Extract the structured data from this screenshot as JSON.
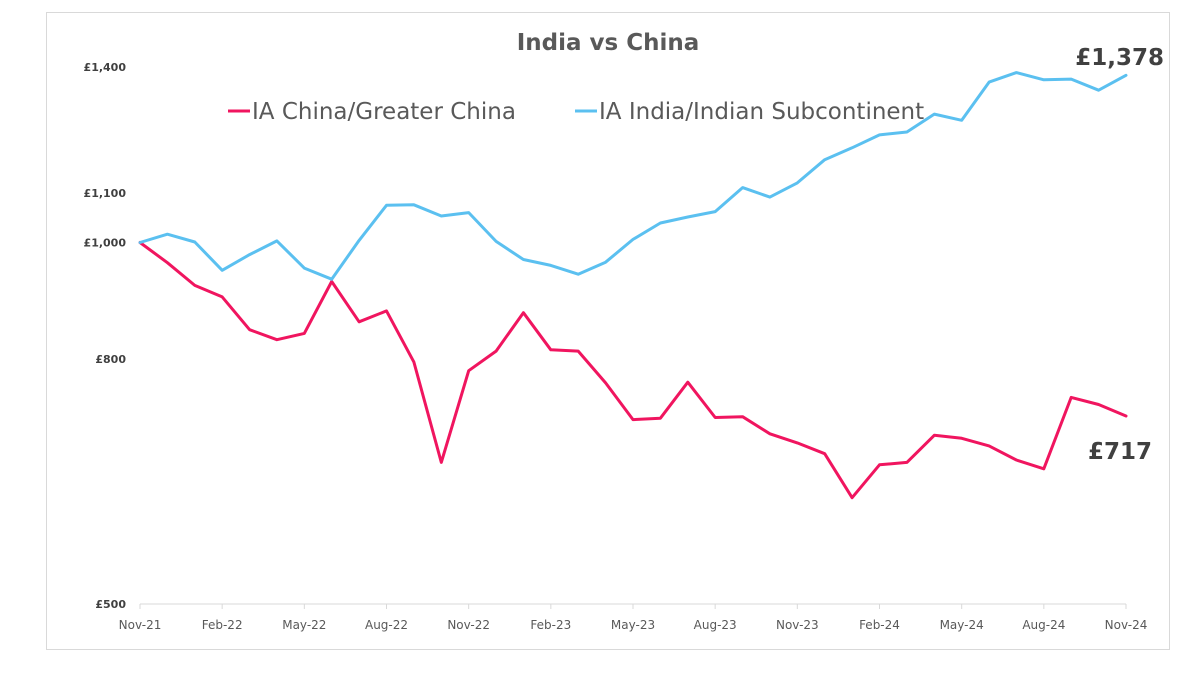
{
  "chart_data": {
    "type": "line",
    "title": "India vs China",
    "y_scale": "log",
    "ylim": [
      500,
      1400
    ],
    "y_ticks": [
      {
        "value": 500,
        "label": "£500"
      },
      {
        "value": 800,
        "label": "£800"
      },
      {
        "value": 1000,
        "label": "£1,000"
      },
      {
        "value": 1100,
        "label": "£1,100"
      },
      {
        "value": 1400,
        "label": "£1,400"
      }
    ],
    "x_tick_labels": [
      "Nov-21",
      "Feb-22",
      "May-22",
      "Aug-22",
      "Nov-22",
      "Feb-23",
      "May-23",
      "Aug-23",
      "Nov-23",
      "Feb-24",
      "May-24",
      "Aug-24",
      "Nov-24"
    ],
    "x": [
      "Nov-21",
      "Dec-21",
      "Jan-22",
      "Feb-22",
      "Mar-22",
      "Apr-22",
      "May-22",
      "Jun-22",
      "Jul-22",
      "Aug-22",
      "Sep-22",
      "Oct-22",
      "Nov-22",
      "Dec-22",
      "Jan-23",
      "Feb-23",
      "Mar-23",
      "Apr-23",
      "May-23",
      "Jun-23",
      "Jul-23",
      "Aug-23",
      "Sep-23",
      "Oct-23",
      "Nov-23",
      "Dec-23",
      "Jan-24",
      "Feb-24",
      "Mar-24",
      "Apr-24",
      "May-24",
      "Jun-24",
      "Jul-24",
      "Aug-24",
      "Sep-24",
      "Oct-24",
      "Nov-24"
    ],
    "series": [
      {
        "name": "IA China/Greater China",
        "color": "#f0155f",
        "end_label": "£717",
        "values": [
          1000,
          962,
          921,
          901,
          846,
          830,
          840,
          928,
          859,
          877,
          795,
          656,
          782,
          812,
          874,
          814,
          812,
          764,
          712,
          714,
          765,
          715,
          716,
          693,
          681,
          667,
          613,
          653,
          656,
          691,
          687,
          677,
          659,
          648,
          743,
          733,
          717
        ]
      },
      {
        "name": "IA India/Indian Subcontinent",
        "color": "#5bc0f0",
        "end_label": "£1,378",
        "values": [
          1000,
          1016,
          1001,
          948,
          977,
          1003,
          952,
          932,
          1004,
          1074,
          1075,
          1052,
          1059,
          1002,
          968,
          957,
          941,
          963,
          1006,
          1038,
          1050,
          1061,
          1111,
          1091,
          1121,
          1172,
          1199,
          1229,
          1236,
          1279,
          1264,
          1360,
          1385,
          1366,
          1368,
          1339,
          1378
        ]
      }
    ],
    "legend_position": "top-center",
    "grid": false
  }
}
